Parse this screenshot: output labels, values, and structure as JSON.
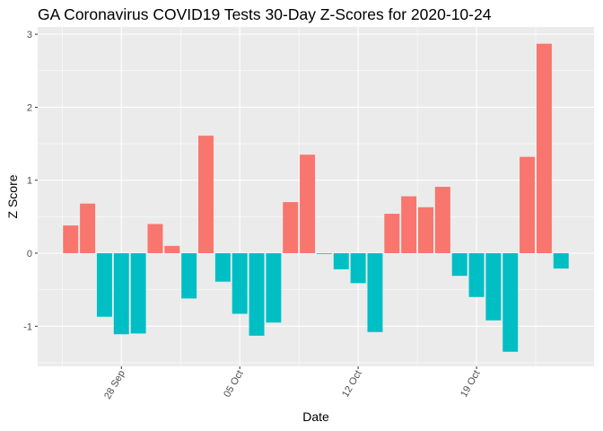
{
  "chart_data": {
    "type": "bar",
    "title": "GA Coronavirus COVID19 Tests 30-Day Z-Scores for 2020-10-24",
    "xlabel": "Date",
    "ylabel": "Z Score",
    "ylim": [
      -1.55,
      3.1
    ],
    "yticks": [
      -1,
      0,
      1,
      2,
      3
    ],
    "x_tick_labels": [
      {
        "label": "28 Sep",
        "date": "2020-09-28"
      },
      {
        "label": "05 Oct",
        "date": "2020-10-05"
      },
      {
        "label": "12 Oct",
        "date": "2020-10-12"
      },
      {
        "label": "19 Oct",
        "date": "2020-10-19"
      }
    ],
    "colors": {
      "positive": "#F8766D",
      "negative": "#00BFC4"
    },
    "grid": true,
    "legend": "none",
    "bars": [
      {
        "date": "2020-09-25",
        "value": 0.38
      },
      {
        "date": "2020-09-26",
        "value": 0.68
      },
      {
        "date": "2020-09-27",
        "value": -0.87
      },
      {
        "date": "2020-09-28",
        "value": -1.11
      },
      {
        "date": "2020-09-29",
        "value": -1.1
      },
      {
        "date": "2020-09-30",
        "value": 0.4
      },
      {
        "date": "2020-10-01",
        "value": 0.1
      },
      {
        "date": "2020-10-02",
        "value": -0.62
      },
      {
        "date": "2020-10-03",
        "value": 1.61
      },
      {
        "date": "2020-10-04",
        "value": -0.39
      },
      {
        "date": "2020-10-05",
        "value": -0.83
      },
      {
        "date": "2020-10-06",
        "value": -1.13
      },
      {
        "date": "2020-10-07",
        "value": -0.95
      },
      {
        "date": "2020-10-08",
        "value": 0.7
      },
      {
        "date": "2020-10-09",
        "value": 1.35
      },
      {
        "date": "2020-10-10",
        "value": -0.01
      },
      {
        "date": "2020-10-11",
        "value": -0.22
      },
      {
        "date": "2020-10-12",
        "value": -0.41
      },
      {
        "date": "2020-10-13",
        "value": -1.08
      },
      {
        "date": "2020-10-14",
        "value": 0.54
      },
      {
        "date": "2020-10-15",
        "value": 0.78
      },
      {
        "date": "2020-10-16",
        "value": 0.63
      },
      {
        "date": "2020-10-17",
        "value": 0.91
      },
      {
        "date": "2020-10-18",
        "value": -0.31
      },
      {
        "date": "2020-10-19",
        "value": -0.6
      },
      {
        "date": "2020-10-20",
        "value": -0.92
      },
      {
        "date": "2020-10-21",
        "value": -1.35
      },
      {
        "date": "2020-10-22",
        "value": 1.32
      },
      {
        "date": "2020-10-23",
        "value": 2.87
      },
      {
        "date": "2020-10-24",
        "value": -0.21
      }
    ]
  }
}
